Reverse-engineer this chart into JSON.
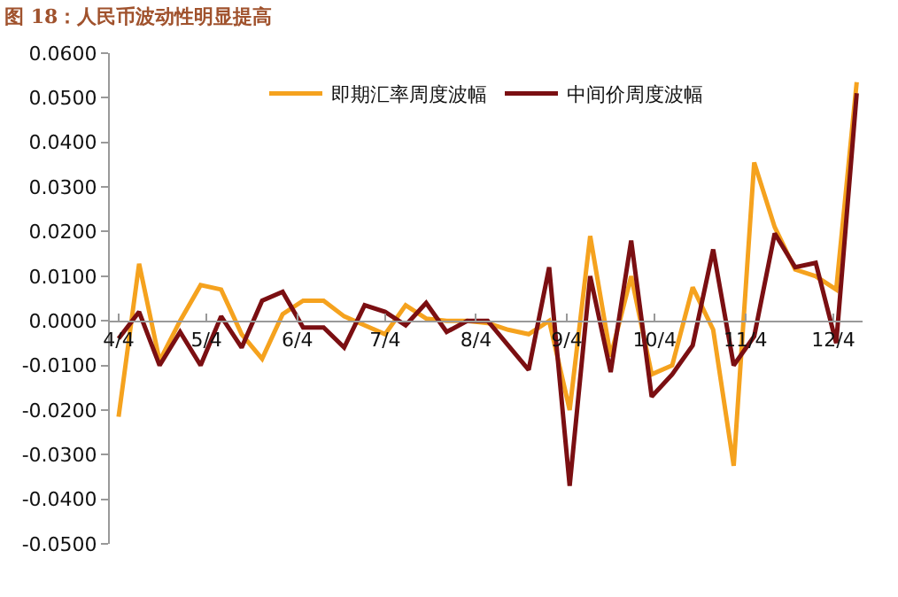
{
  "chart_data": {
    "type": "line",
    "title": "图 18：人民币波动性明显提高",
    "x": [
      "--04-04",
      "--04-11",
      "--04-18",
      "--04-25",
      "--05-02",
      "--05-09",
      "--05-16",
      "--05-23",
      "--05-30",
      "--06-06",
      "--06-13",
      "--06-20",
      "--06-27",
      "--07-04",
      "--07-11",
      "--07-18",
      "--07-25",
      "--08-01",
      "--08-08",
      "--08-15",
      "--08-22",
      "--08-29",
      "--09-05",
      "--09-12",
      "--09-19",
      "--09-26",
      "--10-03",
      "--10-10",
      "--10-17",
      "--10-24",
      "--10-31",
      "--11-07",
      "--11-14",
      "--11-21",
      "--11-28",
      "--12-05",
      "--12-12"
    ],
    "series": [
      {
        "name": "即期汇率周度波幅",
        "color": "#f5a21e",
        "values": [
          -0.0215,
          0.0128,
          -0.009,
          0.0,
          0.008,
          0.007,
          -0.003,
          -0.0085,
          0.0015,
          0.0045,
          0.0045,
          0.001,
          -0.001,
          -0.003,
          0.0035,
          0.0005,
          0.0,
          0.0,
          -0.0005,
          -0.002,
          -0.003,
          0.0,
          -0.02,
          0.019,
          -0.008,
          0.01,
          -0.012,
          -0.01,
          0.0075,
          -0.002,
          -0.0325,
          0.0355,
          0.021,
          0.0115,
          0.01,
          0.007,
          0.0535
        ]
      },
      {
        "name": "中间价周度波幅",
        "color": "#7b0f12",
        "values": [
          -0.004,
          0.002,
          -0.01,
          -0.0025,
          -0.01,
          0.001,
          -0.006,
          0.0045,
          0.0065,
          -0.0015,
          -0.0015,
          -0.006,
          0.0035,
          0.002,
          -0.001,
          0.004,
          -0.0025,
          0.0,
          0.0,
          -0.0055,
          -0.011,
          0.012,
          -0.037,
          0.01,
          -0.0115,
          0.018,
          -0.017,
          -0.012,
          -0.0055,
          0.016,
          -0.01,
          -0.0035,
          0.0196,
          0.012,
          0.013,
          -0.005,
          0.051
        ]
      }
    ],
    "xlim": [
      "--04-01",
      "--12-14"
    ],
    "xticks": [
      {
        "value": "--04-04",
        "label": "4/4"
      },
      {
        "value": "--05-04",
        "label": "5/4"
      },
      {
        "value": "--06-04",
        "label": "6/4"
      },
      {
        "value": "--07-04",
        "label": "7/4"
      },
      {
        "value": "--08-04",
        "label": "8/4"
      },
      {
        "value": "--09-04",
        "label": "9/4"
      },
      {
        "value": "--10-04",
        "label": "10/4"
      },
      {
        "value": "--11-04",
        "label": "11/4"
      },
      {
        "value": "--12-04",
        "label": "12/4"
      }
    ],
    "ylim": [
      -0.05,
      0.06
    ],
    "yticks": [
      {
        "value": -0.05,
        "label": "-0.0500"
      },
      {
        "value": -0.04,
        "label": "-0.0400"
      },
      {
        "value": -0.03,
        "label": "-0.0300"
      },
      {
        "value": -0.02,
        "label": "-0.0200"
      },
      {
        "value": -0.01,
        "label": "-0.0100"
      },
      {
        "value": 0,
        "label": "0.0000"
      },
      {
        "value": 0.01,
        "label": "0.0100"
      },
      {
        "value": 0.02,
        "label": "0.0200"
      },
      {
        "value": 0.03,
        "label": "0.0300"
      },
      {
        "value": 0.04,
        "label": "0.0400"
      },
      {
        "value": 0.05,
        "label": "0.0500"
      },
      {
        "value": 0.06,
        "label": "0.0600"
      }
    ],
    "legend": "top",
    "marker": "none",
    "line_style": "solid"
  }
}
